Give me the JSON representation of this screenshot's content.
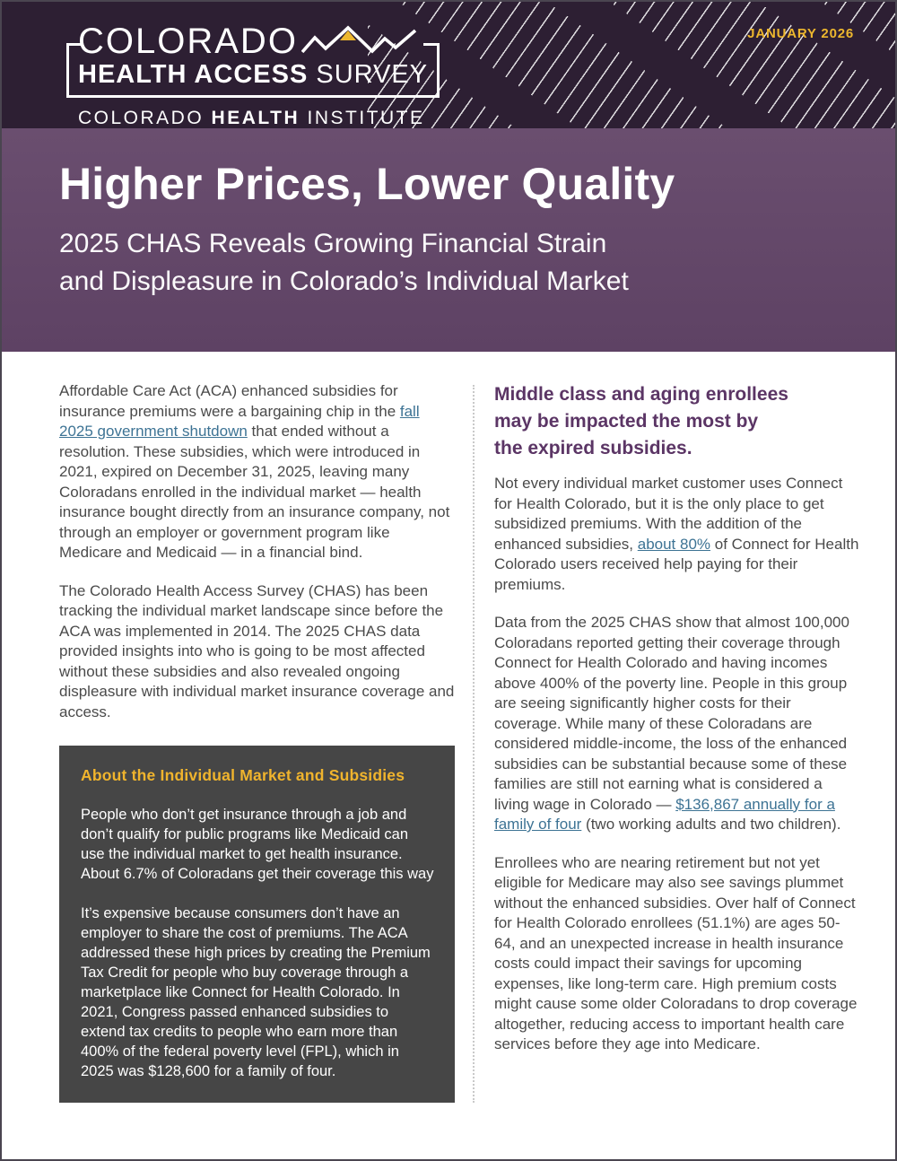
{
  "colors": {
    "masthead_bg": "#2d1f33",
    "banner_bg": "#654a6a",
    "accent_gold": "#edb72e",
    "callout_bg": "#464646",
    "callout_heading": "#f0b42d",
    "heading_purple": "#5b3565",
    "body_text": "#4a4a4a",
    "link_blue": "#3d7394"
  },
  "masthead": {
    "date": "JANUARY 2026",
    "logo": {
      "line1": "COLORADO",
      "line2_bold": "HEALTH ACCESS",
      "line2_regular": "SURVEY",
      "org_pre": "COLORADO",
      "org_bold": "HEALTH",
      "org_post": "INSTITUTE",
      "mountain_icon": "mountain-zigzag-with-gold-peak"
    }
  },
  "banner": {
    "title": "Higher Prices, Lower Quality",
    "subtitle_lines": [
      "2025 CHAS Reveals Growing Financial Strain",
      "and Displeasure in Colorado’s Individual Market"
    ]
  },
  "left_column": {
    "paragraphs": [
      {
        "segments": [
          {
            "text": "Affordable Care Act (ACA) enhanced subsidies for insurance premiums were a bargaining chip in the "
          },
          {
            "text": "fall 2025 government shutdown",
            "link": true
          },
          {
            "text": " that ended without a resolution. These subsidies, which were introduced in 2021, expired on December 31, 2025, leaving many Coloradans enrolled in the individual market — health insurance bought directly from an insurance company, not through an employer or government program like Medicare and Medicaid — in a financial bind."
          }
        ]
      },
      {
        "segments": [
          {
            "text": "The Colorado Health Access Survey (CHAS) has been tracking the individual market landscape since before the ACA was implemented in 2014. The 2025 CHAS data provided insights into who is going to be most affected without these subsidies and also revealed ongoing displeasure with individual market insurance coverage and access."
          }
        ]
      }
    ],
    "callout": {
      "heading": "About the Individual Market and Subsidies",
      "paragraphs": [
        "People who don’t get insurance through a job and don’t qualify for public programs like Medicaid can use the individual market to get health insurance. About 6.7% of Coloradans get their coverage this way",
        "It’s expensive because consumers don’t have an employer to share the cost of premiums. The ACA addressed these high prices by creating the Premium Tax Credit for people who buy coverage through a marketplace like Connect for Health Colorado. In 2021, Congress passed enhanced subsidies to extend tax credits to people who earn more than 400% of the federal poverty level (FPL), which in 2025 was $128,600 for a family of four."
      ]
    }
  },
  "right_column": {
    "heading_lines": [
      "Middle class and aging enrollees",
      "may be impacted the most by",
      "the expired subsidies."
    ],
    "paragraphs": [
      {
        "segments": [
          {
            "text": "Not every individual market customer uses Connect for Health Colorado, but it is the only place to get subsidized premiums. With the addition of the enhanced subsidies, "
          },
          {
            "text": "about 80%",
            "link": true
          },
          {
            "text": " of Connect for Health Colorado users received help paying for their premiums."
          }
        ]
      },
      {
        "segments": [
          {
            "text": "Data from the 2025 CHAS show that almost 100,000 Coloradans reported getting their coverage through Connect for Health Colorado and having incomes above 400% of the poverty line. People in this group are seeing significantly higher costs for their coverage. While many of these Coloradans are considered middle-income, the loss of the enhanced subsidies can be substantial because some of these families are still not earning what is considered a living wage in Colorado — "
          },
          {
            "text": "$136,867 annually for a family of four",
            "link": true
          },
          {
            "text": " (two working adults and two children)."
          }
        ]
      },
      {
        "segments": [
          {
            "text": "Enrollees who are nearing retirement but not yet eligible for Medicare may also see savings plummet without the enhanced subsidies. Over half of Connect for Health Colorado enrollees (51.1%) are ages 50-64, and an unexpected increase in health insurance costs could impact their savings for upcoming expenses, like long-term care. High premium costs might cause some older Coloradans to drop coverage altogether, reducing access to important health care services before they age into Medicare."
          }
        ]
      }
    ]
  }
}
